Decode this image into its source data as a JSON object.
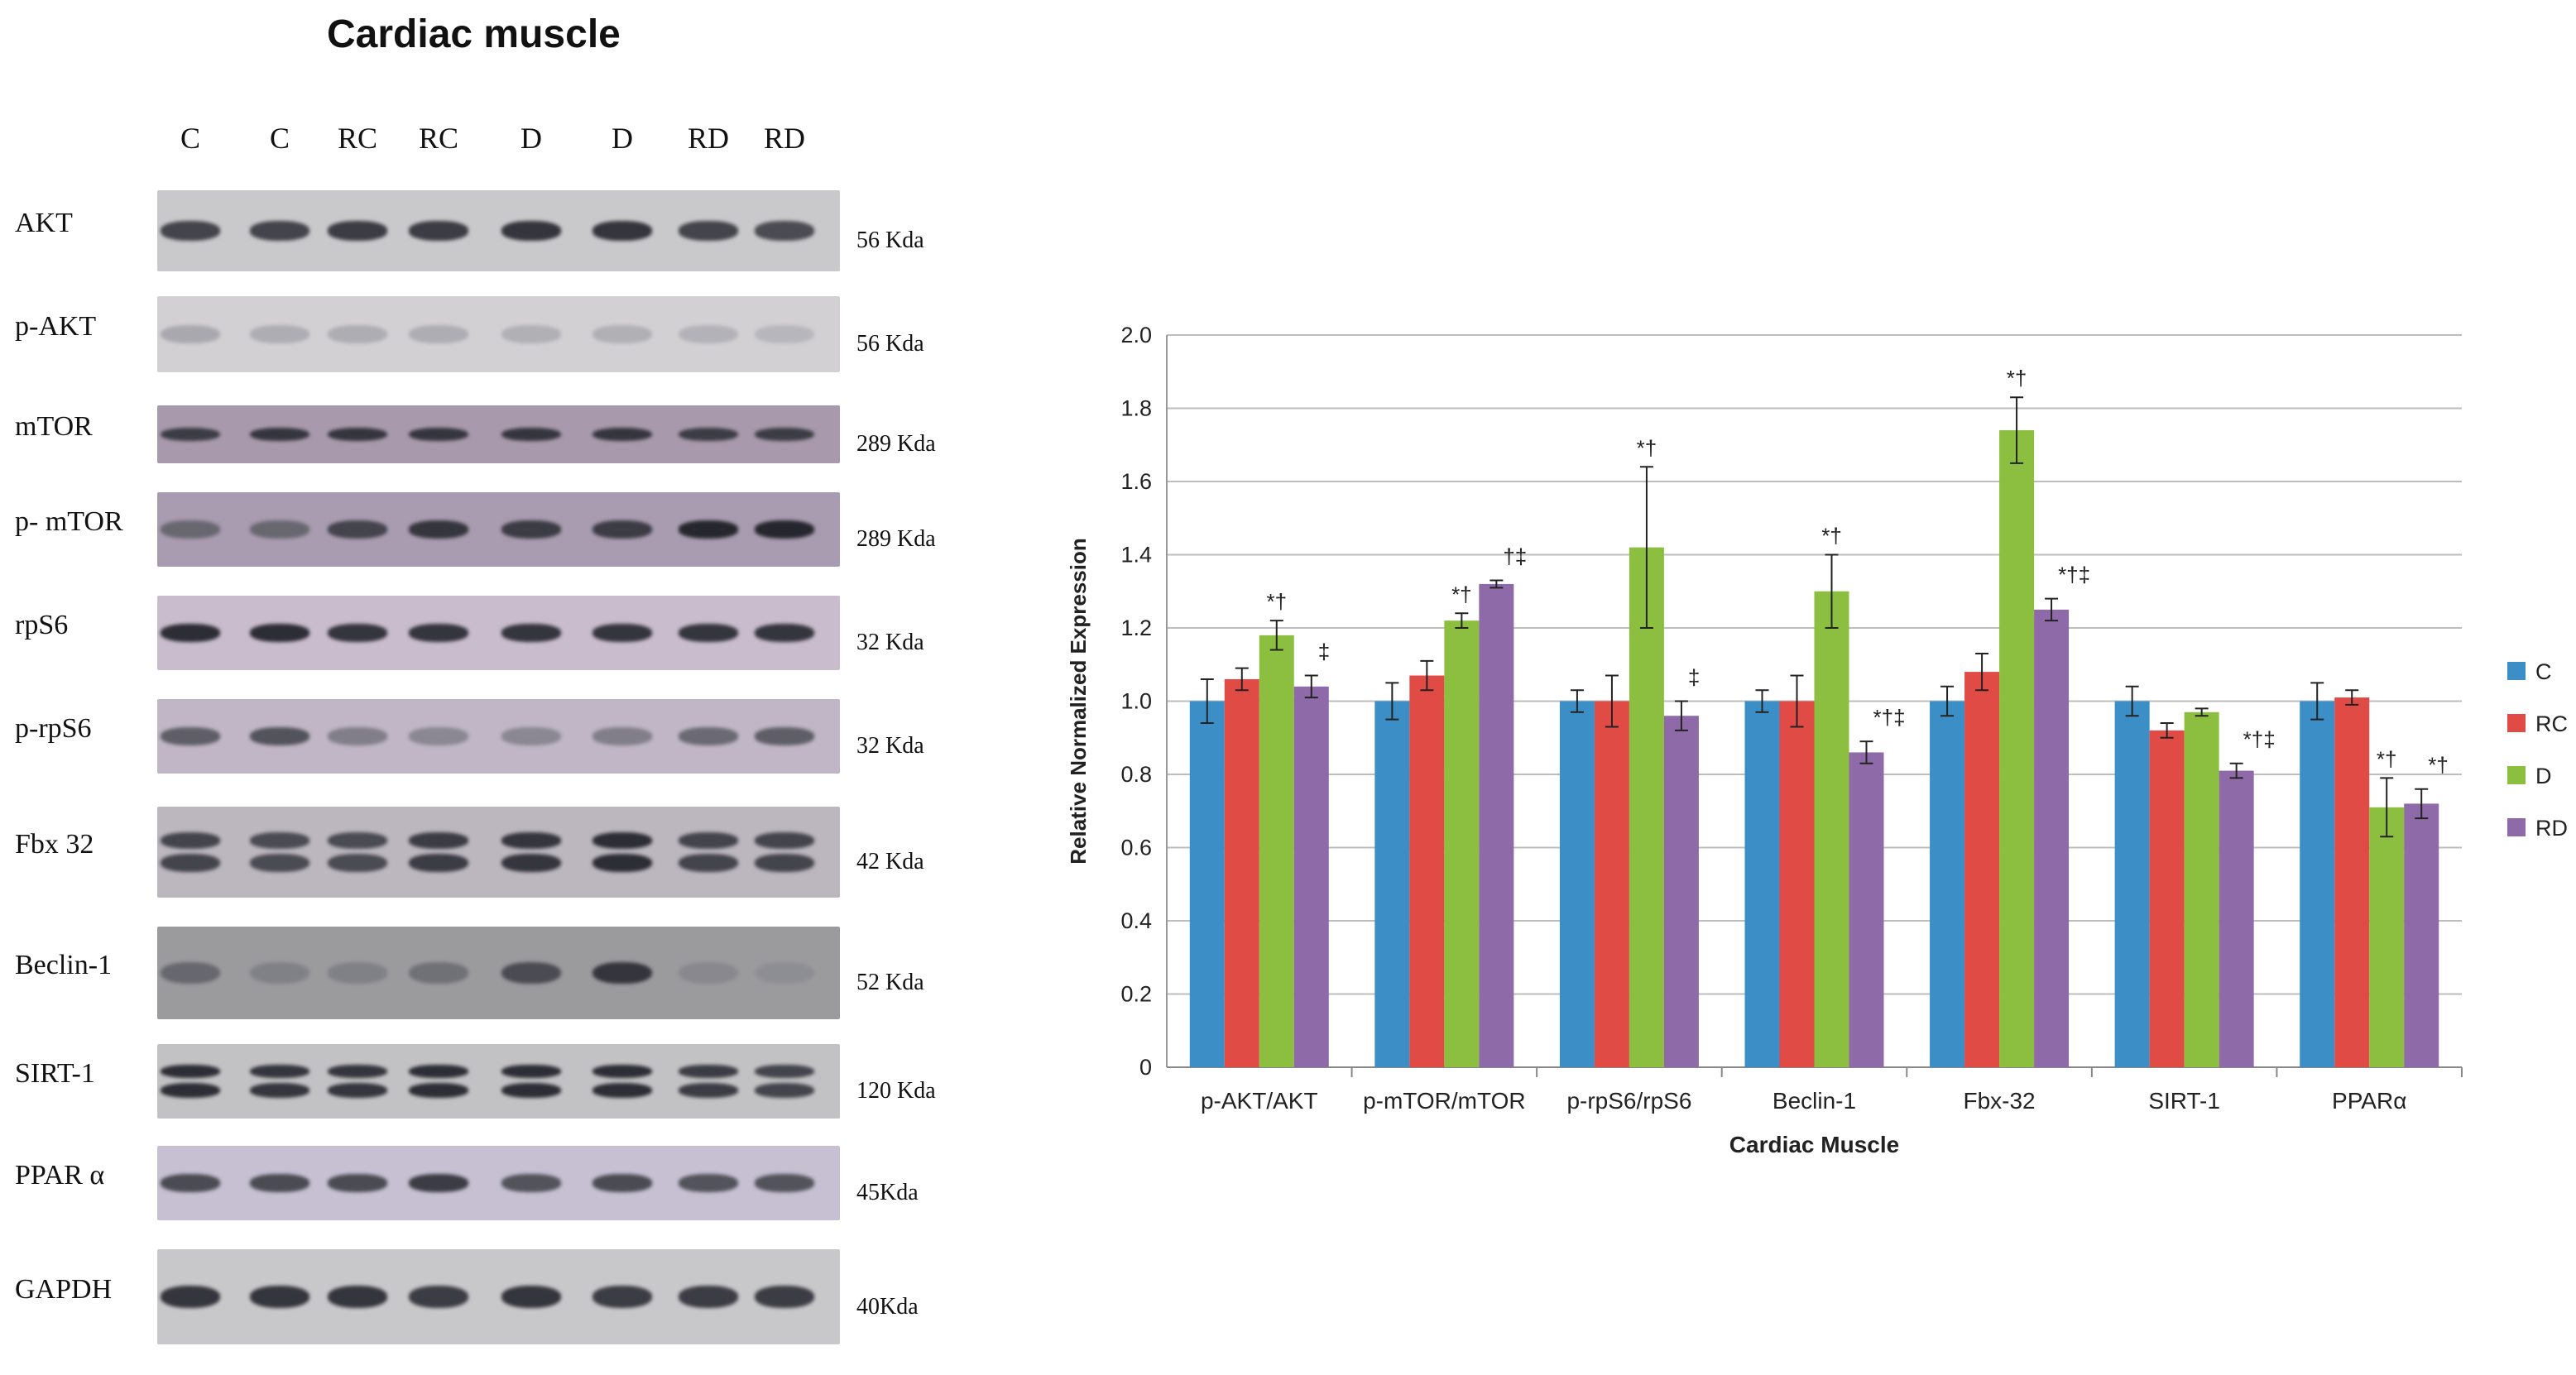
{
  "blot": {
    "title": "Cardiac muscle",
    "lanes": [
      "C",
      "C",
      "RC",
      "RC",
      "D",
      "D",
      "RD",
      "RD"
    ],
    "rows": [
      {
        "protein": "AKT",
        "kda": "56 Kda",
        "bg": "#c9c9cb",
        "intensity": [
          0.75,
          0.75,
          0.8,
          0.8,
          0.85,
          0.85,
          0.75,
          0.7
        ],
        "split": false
      },
      {
        "protein": "p-AKT",
        "kda": "56 Kda",
        "bg": "#d2d0d3",
        "intensity": [
          0.25,
          0.22,
          0.22,
          0.22,
          0.2,
          0.2,
          0.18,
          0.15
        ],
        "split": false
      },
      {
        "protein": "mTOR",
        "kda": "289 Kda",
        "bg": "#a89aac",
        "intensity": [
          0.8,
          0.85,
          0.85,
          0.85,
          0.85,
          0.85,
          0.8,
          0.8
        ],
        "split": false
      },
      {
        "protein": "p- mTOR",
        "kda": "289 Kda",
        "bg": "#a99bb0",
        "intensity": [
          0.55,
          0.55,
          0.75,
          0.85,
          0.8,
          0.8,
          0.95,
          0.95
        ],
        "split": false
      },
      {
        "protein": "rpS6",
        "kda": "32 Kda",
        "bg": "#c9bccd",
        "intensity": [
          0.9,
          0.9,
          0.85,
          0.85,
          0.85,
          0.85,
          0.85,
          0.85
        ],
        "split": false
      },
      {
        "protein": "p-rpS6",
        "kda": "32 Kda",
        "bg": "#c0b6c6",
        "intensity": [
          0.6,
          0.65,
          0.45,
          0.4,
          0.4,
          0.45,
          0.55,
          0.6
        ],
        "split": false
      },
      {
        "protein": "Fbx 32",
        "kda": "42 Kda",
        "bg": "#bcb6be",
        "intensity": [
          0.75,
          0.7,
          0.7,
          0.8,
          0.85,
          0.9,
          0.75,
          0.75
        ],
        "split": true
      },
      {
        "protein": "Beclin-1",
        "kda": "52 Kda",
        "bg": "#9b9b9e",
        "intensity": [
          0.55,
          0.4,
          0.4,
          0.5,
          0.7,
          0.85,
          0.35,
          0.3
        ],
        "split": false
      },
      {
        "protein": "SIRT-1",
        "kda": "120 Kda",
        "bg": "#c2c2c4",
        "intensity": [
          0.9,
          0.85,
          0.85,
          0.9,
          0.9,
          0.9,
          0.8,
          0.75
        ],
        "split": true
      },
      {
        "protein": "PPAR α",
        "kda": "45Kda",
        "bg": "#c6c0d2",
        "intensity": [
          0.7,
          0.7,
          0.7,
          0.8,
          0.65,
          0.7,
          0.65,
          0.65
        ],
        "split": false
      },
      {
        "protein": "GAPDH",
        "kda": "40Kda",
        "bg": "#c8c8ca",
        "intensity": [
          0.85,
          0.85,
          0.85,
          0.8,
          0.85,
          0.8,
          0.8,
          0.8
        ],
        "split": false
      }
    ]
  },
  "chart_data": {
    "type": "bar",
    "title": "",
    "xlabel": "Cardiac Muscle",
    "ylabel": "Relative Normalized Expression",
    "ylim": [
      0,
      2.0
    ],
    "yticks": [
      "0",
      "0.2",
      "0.4",
      "0.6",
      "0.8",
      "1.0",
      "1.2",
      "1.4",
      "1.6",
      "1.8",
      "2.0"
    ],
    "grid": true,
    "legend_position": "right",
    "categories": [
      "p-AKT/AKT",
      "p-mTOR/mTOR",
      "p-rpS6/rpS6",
      "Beclin-1",
      "Fbx-32",
      "SIRT-1",
      "PPARα"
    ],
    "series": [
      {
        "name": "C",
        "color": "#3b8fc6",
        "values": [
          1.0,
          1.0,
          1.0,
          1.0,
          1.0,
          1.0,
          1.0
        ],
        "errors": [
          0.06,
          0.05,
          0.03,
          0.03,
          0.04,
          0.04,
          0.05
        ],
        "annotations": [
          "",
          "",
          "",
          "",
          "",
          "",
          ""
        ]
      },
      {
        "name": "RC",
        "color": "#e04b45",
        "values": [
          1.06,
          1.07,
          1.0,
          1.0,
          1.08,
          0.92,
          1.01
        ],
        "errors": [
          0.03,
          0.04,
          0.07,
          0.07,
          0.05,
          0.02,
          0.02
        ],
        "annotations": [
          "",
          "",
          "",
          "",
          "",
          "",
          ""
        ]
      },
      {
        "name": "D",
        "color": "#8cbf3f",
        "values": [
          1.18,
          1.22,
          1.42,
          1.3,
          1.74,
          0.97,
          0.71
        ],
        "errors": [
          0.04,
          0.02,
          0.22,
          0.1,
          0.09,
          0.01,
          0.08
        ],
        "annotations": [
          "*†",
          "*†",
          "*†",
          "*†",
          "*†",
          "",
          "*†"
        ]
      },
      {
        "name": "RD",
        "color": "#8e6aa8",
        "values": [
          1.04,
          1.32,
          0.96,
          0.86,
          1.25,
          0.81,
          0.72
        ],
        "errors": [
          0.03,
          0.01,
          0.04,
          0.03,
          0.03,
          0.02,
          0.04
        ],
        "annotations": [
          "‡",
          "†‡",
          "‡",
          "*†‡",
          "*†‡",
          "*†‡",
          "*†"
        ]
      }
    ]
  }
}
